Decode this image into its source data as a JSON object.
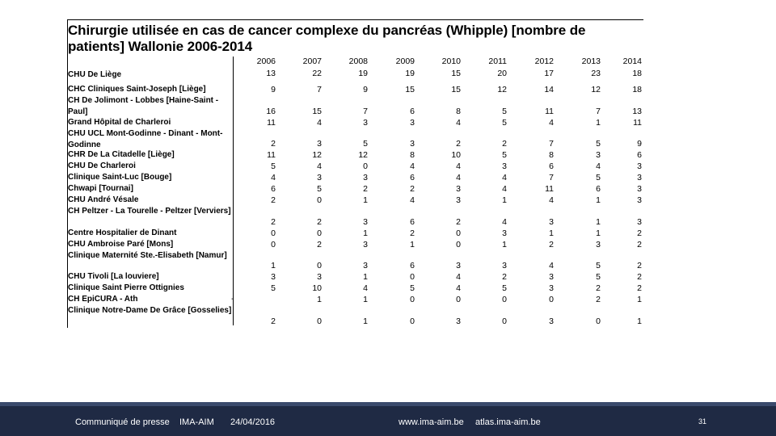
{
  "title": "Chirurgie utilisée en cas de cancer complexe du pancréas (Whipple)  [nombre de patients] Wallonie 2006-2014",
  "years": [
    "2006",
    "2007",
    "2008",
    "2009",
    "2010",
    "2011",
    "2012",
    "2013",
    "2014"
  ],
  "rows": [
    {
      "label": "CHU De Liège",
      "values": [
        "13",
        "22",
        "19",
        "19",
        "15",
        "20",
        "17",
        "23",
        "18"
      ]
    },
    {
      "label": "CHC Cliniques Saint-Joseph [Liège]",
      "values": [
        "9",
        "7",
        "9",
        "15",
        "15",
        "12",
        "14",
        "12",
        "18"
      ]
    },
    {
      "label": "CH De Jolimont - Lobbes [Haine-Saint -Paul]",
      "values": [
        "16",
        "15",
        "7",
        "6",
        "8",
        "5",
        "11",
        "7",
        "13"
      ]
    },
    {
      "label": "Grand Hôpital de Charleroi",
      "values": [
        "11",
        "4",
        "3",
        "3",
        "4",
        "5",
        "4",
        "1",
        "11"
      ]
    },
    {
      "label": "CHU UCL Mont-Godinne - Dinant - Mont-Godinne",
      "values": [
        "2",
        "3",
        "5",
        "3",
        "2",
        "2",
        "7",
        "5",
        "9"
      ]
    },
    {
      "label": "CHR De La Citadelle [Liège]",
      "values": [
        "11",
        "12",
        "12",
        "8",
        "10",
        "5",
        "8",
        "3",
        "6"
      ]
    },
    {
      "label": "CHU De Charleroi",
      "values": [
        "5",
        "4",
        "0",
        "4",
        "4",
        "3",
        "6",
        "4",
        "3"
      ]
    },
    {
      "label": "Clinique Saint-Luc [Bouge]",
      "values": [
        "4",
        "3",
        "3",
        "6",
        "4",
        "4",
        "7",
        "5",
        "3"
      ]
    },
    {
      "label": "Chwapi [Tournai]",
      "values": [
        "6",
        "5",
        "2",
        "2",
        "3",
        "4",
        "11",
        "6",
        "3"
      ]
    },
    {
      "label": "CHU André Vésale",
      "values": [
        "2",
        "0",
        "1",
        "4",
        "3",
        "1",
        "4",
        "1",
        "3"
      ]
    },
    {
      "label": "CH  Peltzer - La Tourelle - Peltzer [Verviers]",
      "values": [
        "2",
        "2",
        "3",
        "6",
        "2",
        "4",
        "3",
        "1",
        "3"
      ]
    },
    {
      "label": "Centre Hospitalier de Dinant",
      "values": [
        "0",
        "0",
        "1",
        "2",
        "0",
        "3",
        "1",
        "1",
        "2"
      ]
    },
    {
      "label": "CHU Ambroise Paré [Mons]",
      "values": [
        "0",
        "2",
        "3",
        "1",
        "0",
        "1",
        "2",
        "3",
        "2"
      ]
    },
    {
      "label": "Clinique Maternité Ste.-Elisabeth [Namur]",
      "values": [
        "1",
        "0",
        "3",
        "6",
        "3",
        "3",
        "4",
        "5",
        "2"
      ]
    },
    {
      "label": "CHU Tivoli [La louviere]",
      "values": [
        "3",
        "3",
        "1",
        "0",
        "4",
        "2",
        "3",
        "5",
        "2"
      ]
    },
    {
      "label": "Clinique Saint Pierre Ottignies",
      "values": [
        "5",
        "10",
        "4",
        "5",
        "4",
        "5",
        "3",
        "2",
        "2"
      ]
    },
    {
      "label": "CH EpiCURA - Ath",
      "values": [
        "",
        "1",
        "1",
        "0",
        "0",
        "0",
        "0",
        "2",
        "1"
      ],
      "marker": "-"
    },
    {
      "label": "Clinique Notre-Dame De Grâce [Gosselies]",
      "values": [
        "2",
        "0",
        "1",
        "0",
        "3",
        "0",
        "3",
        "0",
        "1"
      ]
    }
  ],
  "footer": {
    "press": "Communiqué de presse",
    "org": "IMA-AIM",
    "date": "24/04/2016",
    "url1": "www.ima-aim.be",
    "url2": "atlas.ima-aim.be",
    "page": "31"
  }
}
